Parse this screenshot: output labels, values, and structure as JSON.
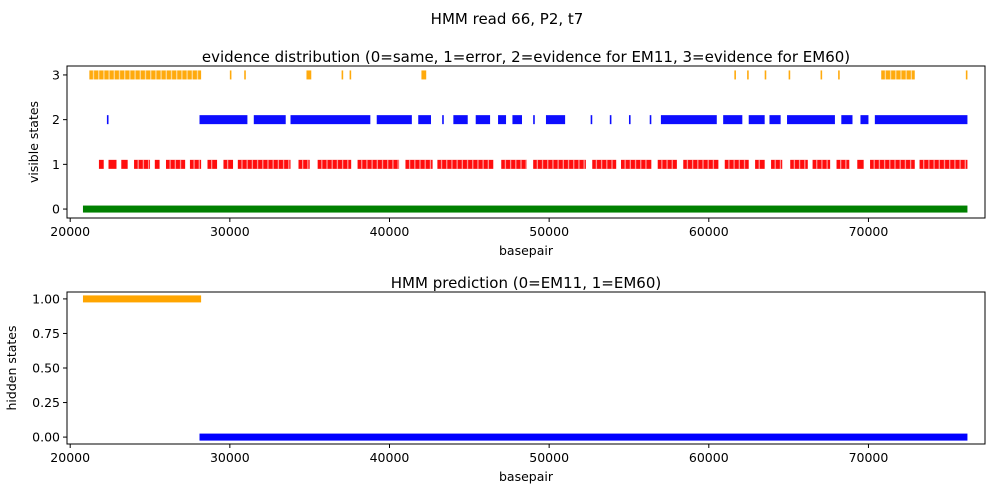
{
  "figure": {
    "suptitle": "HMM read 66, P2, t7"
  },
  "chart_data": [
    {
      "type": "scatter",
      "title": "evidence distribution (0=same, 1=error, 2=evidence for EM11, 3=evidence for EM60)",
      "xlabel": "basepair",
      "ylabel": "visible states",
      "xlim": [
        19800,
        77300
      ],
      "ylim": [
        -0.2,
        3.2
      ],
      "xticks": [
        20000,
        30000,
        40000,
        50000,
        60000,
        70000
      ],
      "yticks": [
        0,
        1,
        2,
        3
      ],
      "grid": false,
      "series": [
        {
          "state": 0,
          "color": "#008000",
          "x_ranges": [
            [
              20800,
              76200
            ]
          ]
        },
        {
          "state": 1,
          "color": "#ff0000",
          "x_ranges": [
            [
              21800,
              22100
            ],
            [
              22400,
              22900
            ],
            [
              23200,
              23600
            ],
            [
              24000,
              25000
            ],
            [
              25300,
              25600
            ],
            [
              26000,
              27200
            ],
            [
              27500,
              28200
            ],
            [
              28600,
              29200
            ],
            [
              29600,
              30200
            ],
            [
              30500,
              33800
            ],
            [
              34300,
              35000
            ],
            [
              35500,
              37600
            ],
            [
              38000,
              40600
            ],
            [
              41000,
              42700
            ],
            [
              43000,
              46500
            ],
            [
              47000,
              48600
            ],
            [
              49000,
              52300
            ],
            [
              52700,
              54200
            ],
            [
              54500,
              56400
            ],
            [
              56800,
              58000
            ],
            [
              58400,
              60600
            ],
            [
              61000,
              62500
            ],
            [
              62900,
              63500
            ],
            [
              63900,
              64600
            ],
            [
              65100,
              66200
            ],
            [
              66500,
              67600
            ],
            [
              68000,
              68800
            ],
            [
              69300,
              69700
            ],
            [
              70100,
              72900
            ],
            [
              73200,
              76200
            ]
          ],
          "gaps": true
        },
        {
          "state": 2,
          "color": "#0000ff",
          "x_ranges": [
            [
              22300,
              22400
            ],
            [
              28100,
              31100
            ],
            [
              31500,
              33500
            ],
            [
              33800,
              38800
            ],
            [
              39200,
              41400
            ],
            [
              41800,
              42600
            ],
            [
              43300,
              43400
            ],
            [
              44000,
              44900
            ],
            [
              45400,
              46300
            ],
            [
              46800,
              47300
            ],
            [
              47700,
              48300
            ],
            [
              49000,
              49100
            ],
            [
              49800,
              51000
            ],
            [
              52600,
              52700
            ],
            [
              53800,
              53900
            ],
            [
              55000,
              55100
            ],
            [
              56300,
              56400
            ],
            [
              57000,
              60500
            ],
            [
              60900,
              62100
            ],
            [
              62500,
              63500
            ],
            [
              63800,
              64500
            ],
            [
              64900,
              67900
            ],
            [
              68300,
              69000
            ],
            [
              69500,
              70000
            ],
            [
              70400,
              76200
            ]
          ],
          "gaps": false
        },
        {
          "state": 3,
          "color": "#ffa500",
          "x_ranges": [
            [
              21200,
              28200
            ],
            [
              30000,
              30100
            ],
            [
              30900,
              31000
            ],
            [
              34800,
              35100
            ],
            [
              37000,
              37100
            ],
            [
              37500,
              37600
            ],
            [
              42000,
              42300
            ],
            [
              61600,
              61700
            ],
            [
              62400,
              62500
            ],
            [
              63500,
              63600
            ],
            [
              65000,
              65100
            ],
            [
              67000,
              67100
            ],
            [
              68100,
              68200
            ],
            [
              70800,
              72900
            ],
            [
              76100,
              76200
            ]
          ],
          "gaps": true
        }
      ]
    },
    {
      "type": "line",
      "title": "HMM prediction (0=EM11, 1=EM60)",
      "xlabel": "basepair",
      "ylabel": "hidden states",
      "xlim": [
        19800,
        77300
      ],
      "ylim": [
        -0.05,
        1.05
      ],
      "xticks": [
        20000,
        30000,
        40000,
        50000,
        60000,
        70000
      ],
      "yticks": [
        0.0,
        0.25,
        0.5,
        0.75,
        1.0
      ],
      "ytick_labels": [
        "0.00",
        "0.25",
        "0.50",
        "0.75",
        "1.00"
      ],
      "grid": false,
      "series": [
        {
          "state": 1,
          "color": "#ffa500",
          "x_ranges": [
            [
              20800,
              28200
            ]
          ]
        },
        {
          "state": 0,
          "color": "#0000ff",
          "x_ranges": [
            [
              28100,
              76200
            ]
          ]
        }
      ]
    }
  ]
}
